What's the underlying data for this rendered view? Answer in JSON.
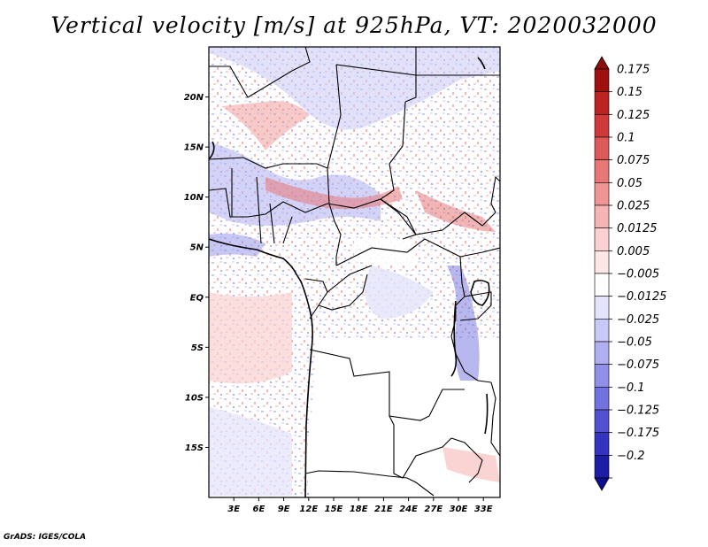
{
  "title": "Vertical velocity [m/s] at 925hPa, VT: 2020032000",
  "credit": "GrADS: IGES/COLA",
  "map": {
    "lon_range": [
      0,
      35
    ],
    "lat_range": [
      -20,
      25
    ],
    "lat_ticks": [
      {
        "value": 20,
        "label": "20N"
      },
      {
        "value": 15,
        "label": "15N"
      },
      {
        "value": 10,
        "label": "10N"
      },
      {
        "value": 5,
        "label": "5N"
      },
      {
        "value": 0,
        "label": "EQ"
      },
      {
        "value": -5,
        "label": "5S"
      },
      {
        "value": -10,
        "label": "10S"
      },
      {
        "value": -15,
        "label": "15S"
      }
    ],
    "lon_ticks": [
      {
        "value": 3,
        "label": "3E"
      },
      {
        "value": 6,
        "label": "6E"
      },
      {
        "value": 9,
        "label": "9E"
      },
      {
        "value": 12,
        "label": "12E"
      },
      {
        "value": 15,
        "label": "15E"
      },
      {
        "value": 18,
        "label": "18E"
      },
      {
        "value": 21,
        "label": "21E"
      },
      {
        "value": 24,
        "label": "24E"
      },
      {
        "value": 27,
        "label": "27E"
      },
      {
        "value": 30,
        "label": "30E"
      },
      {
        "value": 33,
        "label": "33E"
      }
    ]
  },
  "colorbar": {
    "levels": [
      {
        "label": "0.175",
        "color": "#a01010"
      },
      {
        "label": "0.15",
        "color": "#bb2222"
      },
      {
        "label": "0.125",
        "color": "#cf3a3a"
      },
      {
        "label": "0.1",
        "color": "#dd5a5a"
      },
      {
        "label": "0.075",
        "color": "#e87878"
      },
      {
        "label": "0.05",
        "color": "#f09595"
      },
      {
        "label": "0.025",
        "color": "#f6b5b5"
      },
      {
        "label": "0.0125",
        "color": "#fad0d0"
      },
      {
        "label": "0.005",
        "color": "#fde6e6"
      },
      {
        "label": "−0.005",
        "color": "#ffffff"
      },
      {
        "label": "−0.0125",
        "color": "#e3e3fb"
      },
      {
        "label": "−0.025",
        "color": "#c9c9f6"
      },
      {
        "label": "−0.05",
        "color": "#aeaef0"
      },
      {
        "label": "−0.075",
        "color": "#9090e8"
      },
      {
        "label": "−0.1",
        "color": "#7272de"
      },
      {
        "label": "−0.125",
        "color": "#5252d0"
      },
      {
        "label": "−0.175",
        "color": "#3434c0"
      },
      {
        "label": "−0.2",
        "color": "#1c1ca6"
      }
    ],
    "top_cap_color": "#8e0c0c",
    "bottom_cap_color": "#0e0e90"
  }
}
